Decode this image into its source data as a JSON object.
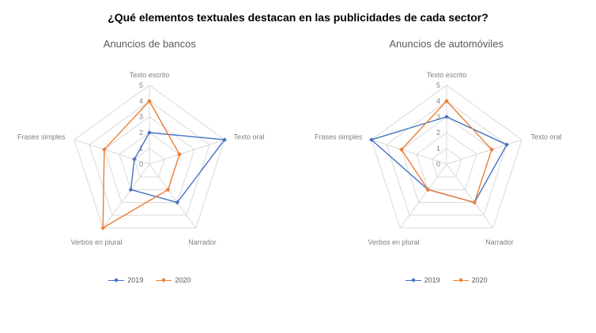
{
  "page_title": "¿Qué elementos textuales destacan en las publicidades de cada sector?",
  "chart_data": [
    {
      "type": "radar",
      "title": "Anuncios de bancos",
      "categories": [
        "Texto escrito",
        "Texto oral",
        "Narrador",
        "Verbos en plural",
        "Frases simples"
      ],
      "series": [
        {
          "name": "2019",
          "color": "#4472C4",
          "values": [
            2,
            5,
            3,
            2,
            1
          ]
        },
        {
          "name": "2020",
          "color": "#ED7D31",
          "values": [
            4,
            2,
            2,
            5,
            3
          ]
        }
      ],
      "rlim": [
        0,
        5
      ],
      "tick_labels": [
        "0",
        "1",
        "2",
        "3",
        "4",
        "5"
      ],
      "grid": true,
      "legend_position": "bottom"
    },
    {
      "type": "radar",
      "title": "Anuncios de automóviles",
      "categories": [
        "Texto escrito",
        "Texto oral",
        "Narrador",
        "Verbos en plural",
        "Frases simples"
      ],
      "series": [
        {
          "name": "2019",
          "color": "#4472C4",
          "values": [
            3,
            4,
            3,
            2,
            5
          ]
        },
        {
          "name": "2020",
          "color": "#ED7D31",
          "values": [
            4,
            3,
            3,
            2,
            3
          ]
        }
      ],
      "rlim": [
        0,
        5
      ],
      "tick_labels": [
        "0",
        "1",
        "2",
        "3",
        "4",
        "5"
      ],
      "grid": true,
      "legend_position": "bottom"
    }
  ]
}
